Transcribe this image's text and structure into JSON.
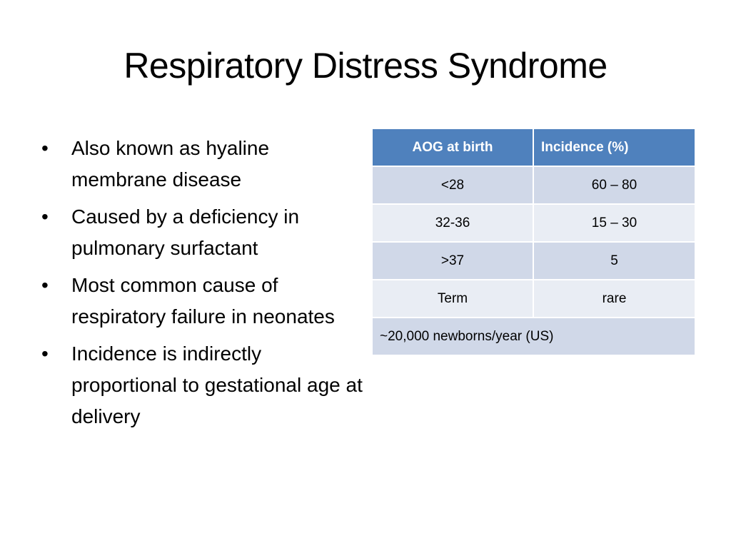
{
  "title": "Respiratory Distress Syndrome",
  "bullets": [
    "Also known as hyaline membrane disease",
    "Caused by a deficiency in pulmonary surfactant",
    "Most common cause of respiratory failure in neonates",
    "Incidence is indirectly proportional to gestational age at delivery"
  ],
  "bullet_symbol": "•",
  "table": {
    "headers": [
      "AOG at birth",
      "Incidence (%)"
    ],
    "rows": [
      [
        "<28",
        "60 – 80"
      ],
      [
        "32-36",
        "15 – 30"
      ],
      [
        ">37",
        "5"
      ],
      [
        "Term",
        "rare"
      ]
    ],
    "footnote": "~20,000 newborns/year (US)"
  },
  "colors": {
    "header_bg": "#4f81bd",
    "row_dark": "#d0d8e8",
    "row_light": "#e9edf4"
  }
}
